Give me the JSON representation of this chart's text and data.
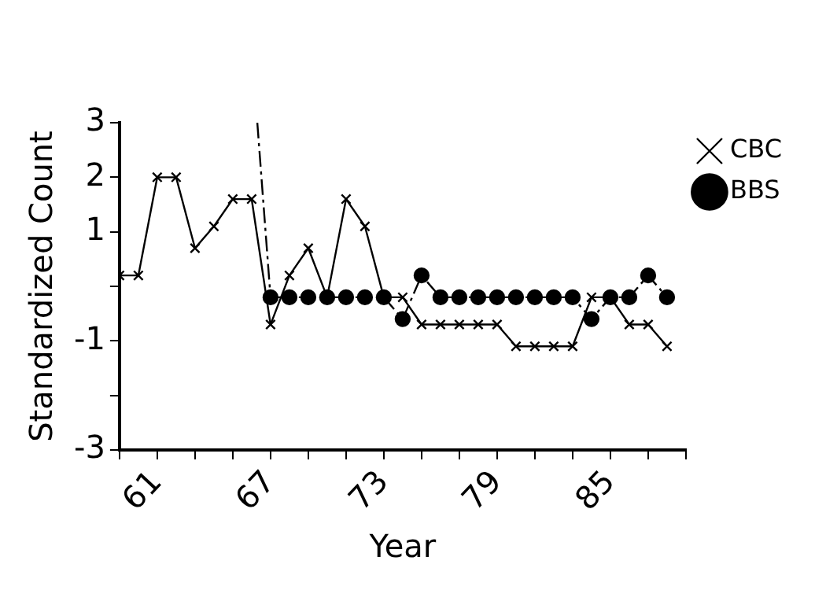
{
  "chart_data": {
    "type": "line",
    "xlabel": "Year",
    "ylabel": "Standardized Count",
    "xlim": [
      59,
      89
    ],
    "xticks": [
      {
        "value": 59,
        "label": null
      },
      61,
      {
        "value": 63,
        "label": null
      },
      {
        "value": 65,
        "label": null
      },
      67,
      {
        "value": 69,
        "label": null
      },
      {
        "value": 71,
        "label": null
      },
      73,
      {
        "value": 75,
        "label": null
      },
      {
        "value": 77,
        "label": null
      },
      79,
      {
        "value": 81,
        "label": null
      },
      {
        "value": 83,
        "label": null
      },
      85,
      {
        "value": 87,
        "label": null
      },
      {
        "value": 89,
        "label": null
      }
    ],
    "ylim": [
      -3,
      3
    ],
    "yticks": [
      -3,
      {
        "value": -2,
        "label": null
      },
      -1,
      {
        "value": 0,
        "label": null
      },
      1,
      2,
      3
    ],
    "grid": false,
    "legend": "top right",
    "series": [
      {
        "name": "CBC",
        "color": "#000000",
        "marker": "cross",
        "line_style": "solid",
        "x": [
          59,
          60,
          61,
          62,
          63,
          64,
          65,
          66,
          67,
          68,
          69,
          70,
          71,
          72,
          73,
          74,
          75,
          76,
          77,
          78,
          79,
          80,
          81,
          82,
          83,
          84,
          85,
          86,
          87,
          88
        ],
        "values": [
          0.2,
          0.2,
          2.0,
          2.0,
          0.7,
          1.1,
          1.6,
          1.6,
          -0.7,
          0.2,
          0.7,
          -0.2,
          1.6,
          1.1,
          -0.2,
          -0.2,
          -0.7,
          -0.7,
          -0.7,
          -0.7,
          -0.7,
          -1.1,
          -1.1,
          -1.1,
          -1.1,
          -0.2,
          -0.2,
          -0.7,
          -0.7,
          -1.1
        ]
      },
      {
        "name": "BBS",
        "color": "#000000",
        "marker": "circle",
        "line_style": "dashed",
        "x": [
          67,
          68,
          69,
          70,
          71,
          72,
          73,
          74,
          75,
          76,
          77,
          78,
          79,
          80,
          81,
          82,
          83,
          84,
          85,
          86,
          87,
          88
        ],
        "values": [
          -0.2,
          -0.2,
          -0.2,
          -0.2,
          -0.2,
          -0.2,
          -0.2,
          -0.6,
          0.2,
          -0.2,
          -0.2,
          -0.2,
          -0.2,
          -0.2,
          -0.2,
          -0.2,
          -0.2,
          -0.6,
          -0.2,
          -0.2,
          0.2,
          -0.2
        ]
      },
      {
        "color": "#000000",
        "marker": "none",
        "line_style": "dashed",
        "x": [
          66.3,
          67
        ],
        "values": [
          3,
          -0.2
        ]
      }
    ]
  }
}
